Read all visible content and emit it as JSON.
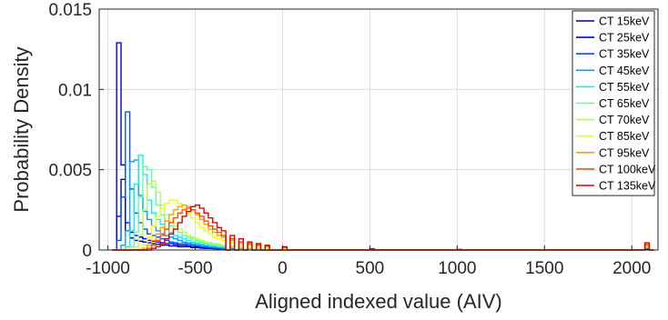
{
  "chart_data": {
    "type": "histogram",
    "xlabel": "Aligned indexed value (AIV)",
    "ylabel": "Probability Density",
    "xlim": [
      -1050,
      2150
    ],
    "ylim": [
      0,
      0.015
    ],
    "xticks": [
      -1000,
      -500,
      0,
      500,
      1000,
      1500,
      2000
    ],
    "xtick_labels": [
      "-1000",
      "-500",
      "0",
      "500",
      "1000",
      "1500",
      "2000"
    ],
    "yticks": [
      0,
      0.005,
      0.01,
      0.015
    ],
    "ytick_labels": [
      "0",
      "0.005",
      "0.01",
      "0.015"
    ],
    "grid": true,
    "legend_position": "top-right",
    "bin_width": 25,
    "series": [
      {
        "name": "CT 15keV",
        "color": "#00008f",
        "x": [
          -975,
          -950,
          -925,
          -900,
          -875,
          -850,
          -825,
          -800,
          -775,
          -750,
          -725,
          -700,
          -675,
          -650,
          -625,
          -600,
          -575,
          -550,
          -525,
          -500,
          -475,
          -450,
          -425,
          -400,
          -375,
          -350,
          -300,
          -250,
          -200,
          -150,
          -100,
          0,
          500,
          1000,
          2075,
          2100
        ],
        "y": [
          0,
          0.0021,
          0.0044,
          0.0012,
          0.00075,
          0.0006,
          0.00055,
          0.0005,
          0.00045,
          0.0004,
          0.00035,
          0.0003,
          0.0003,
          0.00025,
          0.00025,
          0.0002,
          0.0002,
          0.0002,
          0.00015,
          0.00015,
          0.00012,
          0.0001,
          0.0001,
          8e-05,
          7e-05,
          5e-05,
          3e-05,
          2e-05,
          1e-05,
          0,
          0,
          0,
          0,
          0,
          5e-05,
          0
        ]
      },
      {
        "name": "CT 25keV",
        "color": "#0000ef",
        "x": [
          -975,
          -950,
          -925,
          -900,
          -875,
          -850,
          -825,
          -800,
          -775,
          -750,
          -725,
          -700,
          -675,
          -650,
          -625,
          -600,
          -575,
          -550,
          -525,
          -500,
          -475,
          -450,
          -425,
          -400,
          -375,
          -350,
          -300,
          -250,
          -200,
          -150,
          -100,
          0,
          500,
          1000,
          2075,
          2100
        ],
        "y": [
          0,
          0.0129,
          0.0053,
          0.0017,
          0.0011,
          0.0009,
          0.0008,
          0.0007,
          0.0006,
          0.00055,
          0.0005,
          0.00045,
          0.0004,
          0.0004,
          0.00035,
          0.0003,
          0.0003,
          0.00025,
          0.0002,
          0.0002,
          0.00018,
          0.00015,
          0.00012,
          0.0001,
          0.0001,
          8e-05,
          5e-05,
          3e-05,
          2e-05,
          1e-05,
          0,
          0,
          0,
          0,
          8e-05,
          0
        ]
      },
      {
        "name": "CT 35keV",
        "color": "#0050ff",
        "x": [
          -975,
          -950,
          -925,
          -900,
          -875,
          -850,
          -825,
          -800,
          -775,
          -750,
          -725,
          -700,
          -675,
          -650,
          -625,
          -600,
          -575,
          -550,
          -525,
          -500,
          -475,
          -450,
          -425,
          -400,
          -375,
          -350,
          -300,
          -250,
          -200,
          -150,
          -100,
          0,
          500,
          1000,
          2075,
          2100
        ],
        "y": [
          0,
          0.0006,
          0.0033,
          0.0086,
          0.0038,
          0.0023,
          0.0017,
          0.0013,
          0.001,
          0.0009,
          0.0008,
          0.0007,
          0.0006,
          0.0005,
          0.00045,
          0.0004,
          0.0004,
          0.00035,
          0.0003,
          0.00025,
          0.0002,
          0.00018,
          0.00015,
          0.00012,
          0.0001,
          8e-05,
          6e-05,
          4e-05,
          3e-05,
          2e-05,
          1e-05,
          0,
          0,
          0,
          0.0001,
          0
        ]
      },
      {
        "name": "CT 45keV",
        "color": "#00a0ff",
        "x": [
          -975,
          -950,
          -925,
          -900,
          -875,
          -850,
          -825,
          -800,
          -775,
          -750,
          -725,
          -700,
          -675,
          -650,
          -625,
          -600,
          -575,
          -550,
          -525,
          -500,
          -475,
          -450,
          -425,
          -400,
          -375,
          -350,
          -300,
          -250,
          -200,
          -150,
          -100,
          0,
          500,
          1000,
          2075,
          2100
        ],
        "y": [
          0,
          0,
          0.0003,
          0.0012,
          0.0055,
          0.0056,
          0.0034,
          0.0024,
          0.0019,
          0.0015,
          0.0012,
          0.001,
          0.0009,
          0.0008,
          0.0007,
          0.0006,
          0.0005,
          0.00045,
          0.0004,
          0.00035,
          0.0003,
          0.00025,
          0.0002,
          0.00018,
          0.00015,
          0.00012,
          9e-05,
          6e-05,
          4e-05,
          3e-05,
          2e-05,
          1e-05,
          0,
          0,
          0.00012,
          0
        ]
      },
      {
        "name": "CT 55keV",
        "color": "#10f0f0",
        "x": [
          -975,
          -950,
          -925,
          -900,
          -875,
          -850,
          -825,
          -800,
          -775,
          -750,
          -725,
          -700,
          -675,
          -650,
          -625,
          -600,
          -575,
          -550,
          -525,
          -500,
          -475,
          -450,
          -425,
          -400,
          -375,
          -350,
          -300,
          -250,
          -200,
          -150,
          -100,
          0,
          500,
          1000,
          2075,
          2100
        ],
        "y": [
          0,
          0,
          0,
          0.0002,
          0.0012,
          0.0041,
          0.0059,
          0.0047,
          0.0031,
          0.0023,
          0.0019,
          0.0016,
          0.0013,
          0.0011,
          0.0009,
          0.0008,
          0.0007,
          0.0006,
          0.0005,
          0.00045,
          0.0004,
          0.00035,
          0.0003,
          0.00025,
          0.0002,
          0.00018,
          0.00014,
          0.0001,
          8e-05,
          6e-05,
          4e-05,
          2e-05,
          1e-05,
          0,
          0.00015,
          0
        ]
      },
      {
        "name": "CT 65keV",
        "color": "#60ffa0",
        "x": [
          -975,
          -950,
          -925,
          -900,
          -875,
          -850,
          -825,
          -800,
          -775,
          -750,
          -725,
          -700,
          -675,
          -650,
          -625,
          -600,
          -575,
          -550,
          -525,
          -500,
          -475,
          -450,
          -425,
          -400,
          -375,
          -350,
          -300,
          -250,
          -200,
          -150,
          -100,
          0,
          500,
          1000,
          2075,
          2100
        ],
        "y": [
          0,
          0,
          0,
          0,
          0.0002,
          0.0011,
          0.0033,
          0.0052,
          0.005,
          0.0039,
          0.0028,
          0.0022,
          0.0018,
          0.0015,
          0.0013,
          0.0011,
          0.0009,
          0.0008,
          0.0007,
          0.0006,
          0.0005,
          0.00045,
          0.0004,
          0.00035,
          0.0003,
          0.00025,
          0.0002,
          0.00015,
          0.00012,
          0.0001,
          8e-05,
          5e-05,
          2e-05,
          1e-05,
          0.00018,
          0
        ]
      },
      {
        "name": "CT 70keV",
        "color": "#b4ff50",
        "x": [
          -975,
          -950,
          -925,
          -900,
          -875,
          -850,
          -825,
          -800,
          -775,
          -750,
          -725,
          -700,
          -675,
          -650,
          -625,
          -600,
          -575,
          -550,
          -525,
          -500,
          -475,
          -450,
          -425,
          -400,
          -375,
          -350,
          -300,
          -250,
          -200,
          -150,
          -100,
          0,
          500,
          1000,
          2075,
          2100
        ],
        "y": [
          0,
          0,
          0,
          0,
          0,
          0.0002,
          0.0009,
          0.0025,
          0.0041,
          0.0043,
          0.0036,
          0.0028,
          0.0022,
          0.0018,
          0.0015,
          0.0013,
          0.0011,
          0.0009,
          0.0008,
          0.0007,
          0.0006,
          0.0005,
          0.00045,
          0.0004,
          0.00035,
          0.0003,
          0.00024,
          0.00018,
          0.00014,
          0.00011,
          9e-05,
          6e-05,
          3e-05,
          1e-05,
          0.0002,
          0
        ]
      },
      {
        "name": "CT 85keV",
        "color": "#f0ff10",
        "x": [
          -975,
          -950,
          -925,
          -900,
          -875,
          -850,
          -825,
          -800,
          -775,
          -750,
          -725,
          -700,
          -675,
          -650,
          -625,
          -600,
          -575,
          -550,
          -525,
          -500,
          -475,
          -450,
          -425,
          -400,
          -375,
          -350,
          -300,
          -250,
          -200,
          -150,
          -100,
          0,
          500,
          1000,
          2075,
          2100
        ],
        "y": [
          0,
          0,
          0,
          0,
          0,
          0,
          0.0001,
          0.0003,
          0.0008,
          0.0015,
          0.0021,
          0.0026,
          0.0029,
          0.0031,
          0.0031,
          0.0029,
          0.0026,
          0.0023,
          0.002,
          0.0017,
          0.0014,
          0.0012,
          0.001,
          0.0008,
          0.0007,
          0.0006,
          0.00045,
          0.00035,
          0.00028,
          0.00022,
          0.00018,
          0.00012,
          5e-05,
          2e-05,
          0.00025,
          0
        ]
      },
      {
        "name": "CT 95keV",
        "color": "#ffa000",
        "x": [
          -975,
          -950,
          -925,
          -900,
          -875,
          -850,
          -825,
          -800,
          -775,
          -750,
          -725,
          -700,
          -675,
          -650,
          -625,
          -600,
          -575,
          -550,
          -525,
          -500,
          -475,
          -450,
          -425,
          -400,
          -375,
          -350,
          -300,
          -250,
          -200,
          -150,
          -100,
          0,
          500,
          1000,
          2075,
          2100
        ],
        "y": [
          0,
          0,
          0,
          0,
          0,
          0,
          0,
          0.0001,
          0.0003,
          0.0006,
          0.001,
          0.0014,
          0.0018,
          0.0022,
          0.0025,
          0.0027,
          0.0028,
          0.0027,
          0.0025,
          0.0022,
          0.0019,
          0.0016,
          0.0013,
          0.0011,
          0.0009,
          0.0008,
          0.0006,
          0.00045,
          0.00035,
          0.00028,
          0.00022,
          0.00015,
          6e-05,
          2e-05,
          0.0003,
          0
        ]
      },
      {
        "name": "CT 100keV",
        "color": "#ff5000",
        "x": [
          -975,
          -950,
          -925,
          -900,
          -875,
          -850,
          -825,
          -800,
          -775,
          -750,
          -725,
          -700,
          -675,
          -650,
          -625,
          -600,
          -575,
          -550,
          -525,
          -500,
          -475,
          -450,
          -425,
          -400,
          -375,
          -350,
          -300,
          -250,
          -200,
          -150,
          -100,
          0,
          500,
          1000,
          2075,
          2100
        ],
        "y": [
          0,
          0,
          0,
          0,
          0,
          0,
          0,
          0,
          0.0001,
          0.0003,
          0.0006,
          0.0009,
          0.0013,
          0.0017,
          0.002,
          0.0023,
          0.0025,
          0.0026,
          0.0025,
          0.0023,
          0.0021,
          0.0018,
          0.0015,
          0.0013,
          0.0011,
          0.0009,
          0.0007,
          0.0005,
          0.0004,
          0.00032,
          0.00025,
          0.00017,
          7e-05,
          3e-05,
          0.00035,
          0
        ]
      },
      {
        "name": "CT 135keV",
        "color": "#e00000",
        "x": [
          -975,
          -950,
          -925,
          -900,
          -875,
          -850,
          -825,
          -800,
          -775,
          -750,
          -725,
          -700,
          -675,
          -650,
          -625,
          -600,
          -575,
          -550,
          -525,
          -500,
          -475,
          -450,
          -425,
          -400,
          -375,
          -350,
          -300,
          -250,
          -200,
          -150,
          -100,
          0,
          500,
          1000,
          2075,
          2100
        ],
        "y": [
          0,
          0,
          0,
          0,
          0,
          0,
          0,
          0,
          0,
          0.0001,
          0.0002,
          0.0004,
          0.0007,
          0.001,
          0.0013,
          0.0017,
          0.0021,
          0.0024,
          0.0027,
          0.0028,
          0.0026,
          0.0023,
          0.002,
          0.0017,
          0.0014,
          0.0012,
          0.0009,
          0.0007,
          0.0005,
          0.0004,
          0.0003,
          0.0002,
          8e-05,
          3e-05,
          0.00045,
          0
        ]
      }
    ]
  }
}
